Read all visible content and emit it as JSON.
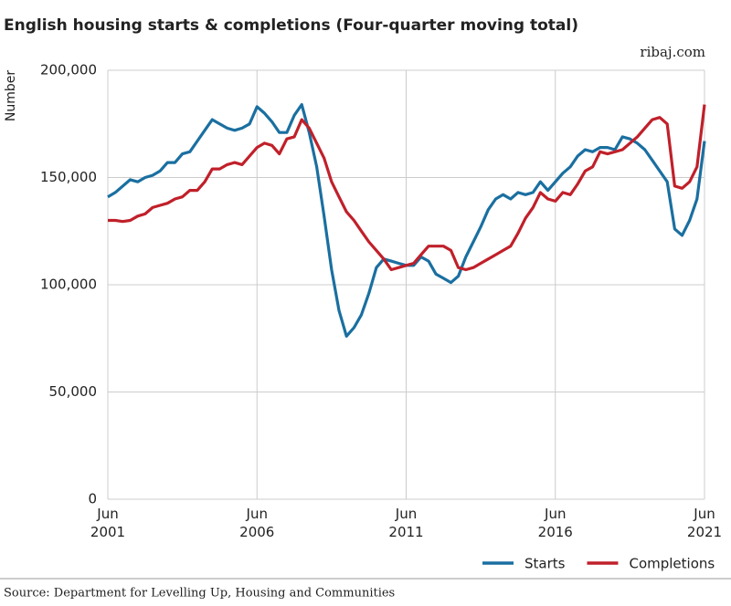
{
  "chart_data": {
    "type": "line",
    "title": "English housing starts & completions (Four-quarter moving total)",
    "source": "ribaj.com",
    "y_label": "Number",
    "note": "Source: Department for Levelling Up, Housing and Communities",
    "categories": [
      "Jun 2001",
      null,
      null,
      null,
      null,
      null,
      null,
      null,
      null,
      null,
      null,
      null,
      null,
      null,
      null,
      null,
      null,
      null,
      null,
      null,
      "Jun 2006",
      null,
      null,
      null,
      null,
      null,
      null,
      null,
      null,
      null,
      null,
      null,
      null,
      null,
      null,
      null,
      null,
      null,
      null,
      null,
      "Jun 2011",
      null,
      null,
      null,
      null,
      null,
      null,
      null,
      null,
      null,
      null,
      null,
      null,
      null,
      null,
      null,
      null,
      null,
      null,
      null,
      "Jun 2016",
      null,
      null,
      null,
      null,
      null,
      null,
      null,
      null,
      null,
      null,
      null,
      null,
      null,
      null,
      null,
      null,
      null,
      null,
      null,
      "Jun 2021"
    ],
    "series": [
      {
        "name": "Starts",
        "color": "#1a6fa0",
        "values": [
          141000,
          143000,
          146000,
          149000,
          148000,
          150000,
          151000,
          153000,
          157000,
          157000,
          161000,
          162000,
          167000,
          172000,
          177000,
          175000,
          173000,
          172000,
          173000,
          175000,
          183000,
          180000,
          176000,
          171000,
          171000,
          179000,
          184000,
          171000,
          155000,
          132000,
          107000,
          88000,
          76000,
          80000,
          86000,
          96000,
          108000,
          112000,
          111000,
          110000,
          109000,
          109000,
          113000,
          111000,
          105000,
          103000,
          101000,
          104000,
          113000,
          120000,
          127000,
          135000,
          140000,
          142000,
          140000,
          143000,
          142000,
          143000,
          148000,
          144000,
          148000,
          152000,
          155000,
          160000,
          163000,
          162000,
          164000,
          164000,
          163000,
          169000,
          168000,
          166000,
          163000,
          158000,
          153000,
          148000,
          126000,
          123000,
          130000,
          140000,
          167000
        ]
      },
      {
        "name": "Completions",
        "color": "#c0202a",
        "values": [
          130000,
          130000,
          129500,
          130000,
          132000,
          133000,
          136000,
          137000,
          138000,
          140000,
          141000,
          144000,
          144000,
          148000,
          154000,
          154000,
          156000,
          157000,
          156000,
          160000,
          164000,
          166000,
          165000,
          161000,
          168000,
          169000,
          177000,
          173000,
          166000,
          159000,
          148000,
          141000,
          134000,
          130000,
          125000,
          120000,
          116000,
          112000,
          107000,
          108000,
          109000,
          110000,
          114000,
          118000,
          118000,
          118000,
          116000,
          108000,
          107000,
          108000,
          110000,
          112000,
          114000,
          116000,
          118000,
          124000,
          131000,
          136000,
          143000,
          140000,
          139000,
          143000,
          142000,
          147000,
          153000,
          155000,
          162000,
          161000,
          162000,
          163000,
          166000,
          169000,
          173000,
          177000,
          178000,
          175000,
          146000,
          145000,
          148000,
          155000,
          184000
        ]
      }
    ],
    "ylim": [
      0,
      200000
    ],
    "yticks": [
      0,
      {
        "value": 50000,
        "label": "50,000"
      },
      {
        "value": 100000,
        "label": "100,000"
      },
      {
        "value": 150000,
        "label": "150,000"
      },
      {
        "value": 200000,
        "label": "200,000"
      }
    ],
    "grid": true
  }
}
